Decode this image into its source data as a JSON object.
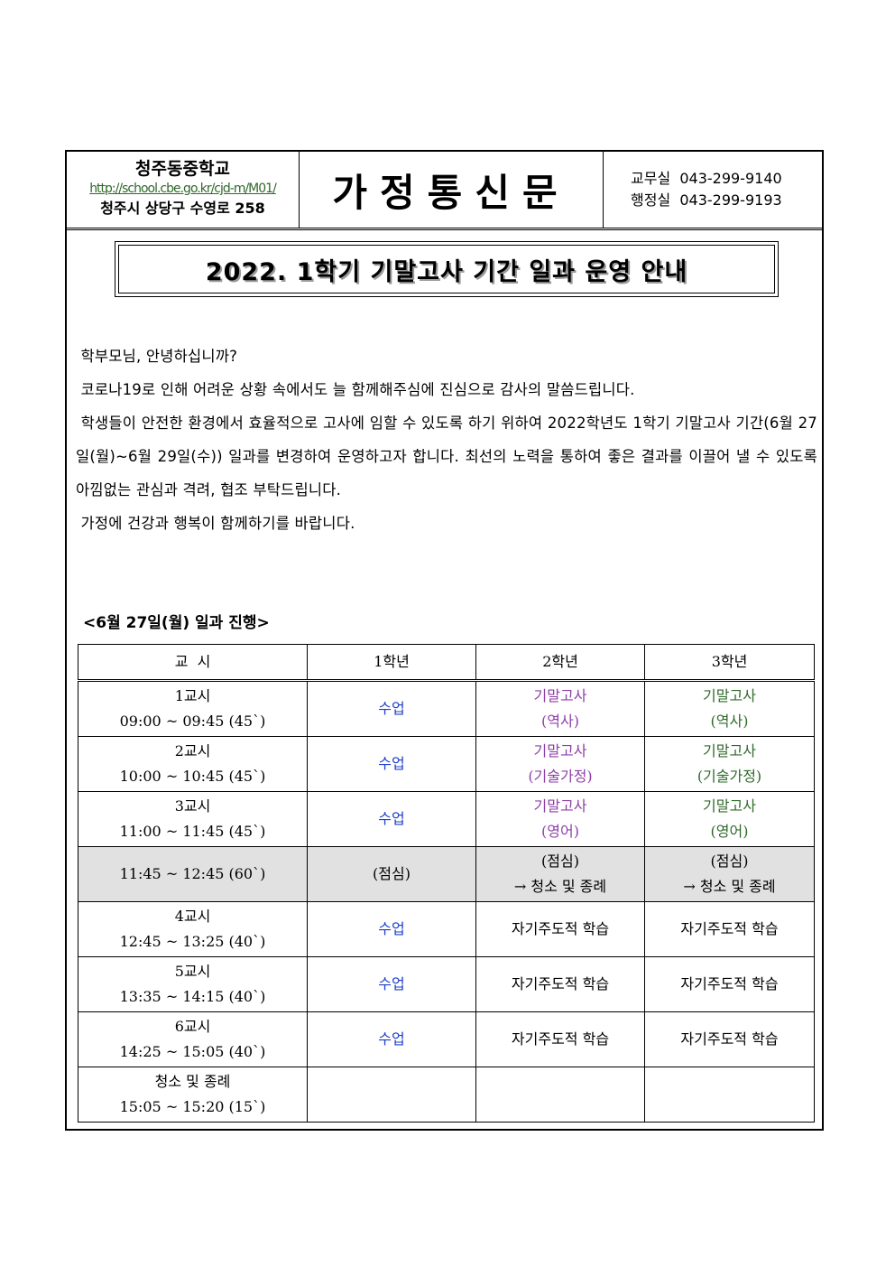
{
  "header": {
    "school_name": "청주동중학교",
    "url": "http://school.cbe.go.kr/cjd-m/M01/",
    "address": "청주시 상당구 수영로 258",
    "title": "가정통신문",
    "phone1": "교무실  043-299-9140",
    "phone2": "행정실  043-299-9193"
  },
  "banner": "2022. 1학기 기말고사 기간 일과 운영 안내",
  "paragraphs": [
    " 학부모님, 안녕하십니까?",
    " 코로나19로 인해 어려운 상황 속에서도 늘 함께해주심에 진심으로 감사의 말씀드립니다.",
    " 학생들이 안전한 환경에서 효율적으로 고사에 임할 수 있도록 하기 위하여 2022학년도 1학기 기말고사 기간(6월 27일(월)~6월 29일(수)) 일과를 변경하여 운영하고자 합니다. 최선의 노력을 통하여 좋은 결과를 이끌어 낼 수 있도록 아낌없는 관심과 격려, 협조 부탁드립니다.",
    " 가정에 건강과 행복이 함께하기를 바랍니다."
  ],
  "schedule_title": "<6월 27일(월) 일과 진행>",
  "table": {
    "headers": [
      "교  시",
      "1학년",
      "2학년",
      "3학년"
    ],
    "rows": [
      {
        "period": "1교시",
        "time": "09:00 ~ 09:45 (45`)",
        "g1": "수업",
        "g2a": "기말고사",
        "g2b": "(역사)",
        "g3a": "기말고사",
        "g3b": "(역사)"
      },
      {
        "period": "2교시",
        "time": "10:00 ~ 10:45 (45`)",
        "g1": "수업",
        "g2a": "기말고사",
        "g2b": "(기술가정)",
        "g3a": "기말고사",
        "g3b": "(기술가정)"
      },
      {
        "period": "3교시",
        "time": "11:00 ~ 11:45 (45`)",
        "g1": "수업",
        "g2a": "기말고사",
        "g2b": "(영어)",
        "g3a": "기말고사",
        "g3b": "(영어)"
      },
      {
        "time": "11:45 ~ 12:45 (60`)",
        "g1": "(점심)",
        "g2a": "(점심)",
        "g2b": "→ 청소 및 종례",
        "g3a": "(점심)",
        "g3b": "→ 청소 및 종례"
      },
      {
        "period": "4교시",
        "time": "12:45 ~ 13:25 (40`)",
        "g1": "수업",
        "g2": "자기주도적 학습",
        "g3": "자기주도적 학습"
      },
      {
        "period": "5교시",
        "time": "13:35 ~ 14:15 (40`)",
        "g1": "수업",
        "g2": "자기주도적 학습",
        "g3": "자기주도적 학습"
      },
      {
        "period": "6교시",
        "time": "14:25 ~ 15:05 (40`)",
        "g1": "수업",
        "g2": "자기주도적 학습",
        "g3": "자기주도적 학습"
      },
      {
        "period": "청소 및 종례",
        "time": "15:05 ~ 15:20 (15`)"
      }
    ]
  }
}
